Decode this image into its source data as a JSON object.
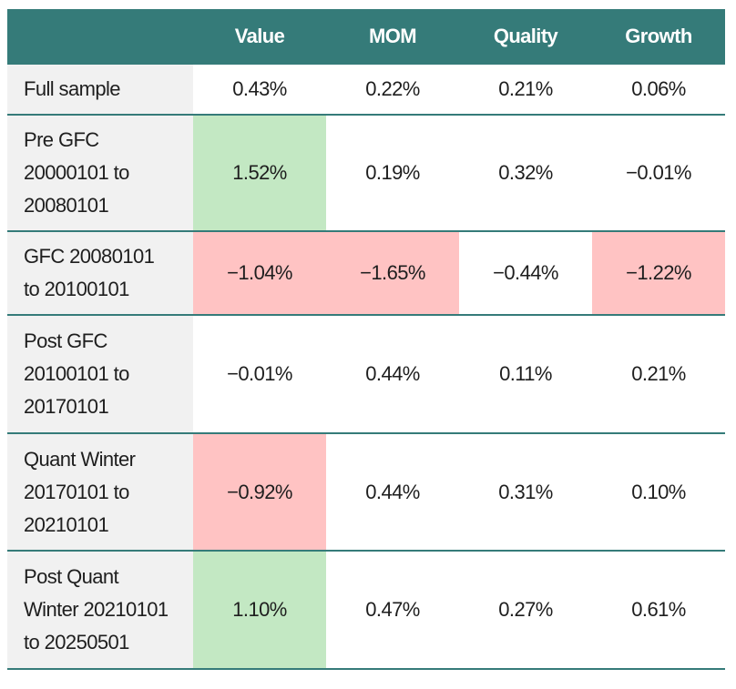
{
  "table": {
    "header": [
      "",
      "Value",
      "MOM",
      "Quality",
      "Growth"
    ],
    "rows": [
      {
        "label": [
          "Full sample"
        ],
        "cells": [
          "0.43%",
          "0.22%",
          "0.21%",
          "0.06%"
        ],
        "fills": [
          null,
          null,
          null,
          null
        ]
      },
      {
        "label": [
          "Pre GFC",
          "20000101 to",
          "20080101"
        ],
        "cells": [
          "1.52%",
          "0.19%",
          "0.32%",
          "−0.01%"
        ],
        "fills": [
          "#c3e8c3",
          null,
          null,
          null
        ]
      },
      {
        "label": [
          "GFC 20080101",
          "to 20100101"
        ],
        "cells": [
          "−1.04%",
          "−1.65%",
          "−0.44%",
          "−1.22%"
        ],
        "fills": [
          "#ffc3c3",
          "#ffc3c3",
          null,
          "#ffc3c3"
        ]
      },
      {
        "label": [
          "Post GFC",
          "20100101 to",
          "20170101"
        ],
        "cells": [
          "−0.01%",
          "0.44%",
          "0.11%",
          "0.21%"
        ],
        "fills": [
          null,
          null,
          null,
          null
        ]
      },
      {
        "label": [
          "Quant Winter",
          "20170101 to",
          "20210101"
        ],
        "cells": [
          "−0.92%",
          "0.44%",
          "0.31%",
          "0.10%"
        ],
        "fills": [
          "#ffc3c3",
          null,
          null,
          null
        ]
      },
      {
        "label": [
          "Post Quant",
          "Winter 20210101",
          "to 20250501"
        ],
        "cells": [
          "1.10%",
          "0.47%",
          "0.27%",
          "0.61%"
        ],
        "fills": [
          "#c3e8c3",
          null,
          null,
          null
        ]
      }
    ]
  }
}
